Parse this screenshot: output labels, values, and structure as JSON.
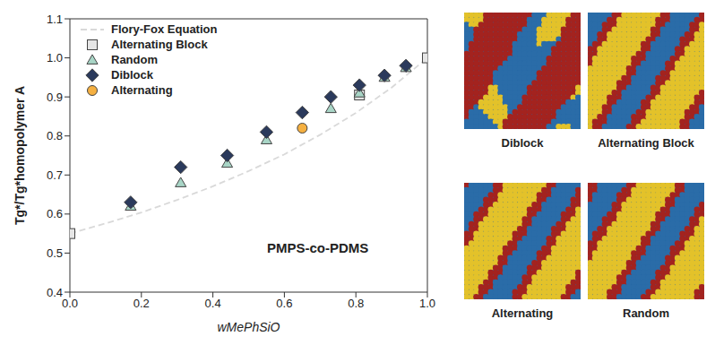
{
  "chart_data": {
    "type": "scatter",
    "annotation": "PMPS-co-PDMS",
    "x_label": "wMePhSiO",
    "y_label": "Tg*/Tg*homopolymer A",
    "xlim": [
      0,
      1
    ],
    "xticks": [
      {
        "value": 0,
        "label": "0.0"
      },
      0.2,
      0.4,
      0.6,
      0.8,
      {
        "value": 1,
        "label": "1.0"
      }
    ],
    "ylim": [
      0.4,
      1.1
    ],
    "yticks": [
      0.4,
      0.5,
      0.6,
      0.7,
      0.8,
      0.9,
      {
        "value": 1,
        "label": "1.0"
      },
      1.1
    ],
    "grid": false,
    "legend": "upper left",
    "series": [
      {
        "name": "Flory-Fox Equation",
        "type": "line",
        "line_style": "dashed",
        "color": "#d9d9d9",
        "x": [
          0,
          0.1,
          0.2,
          0.3,
          0.4,
          0.5,
          0.6,
          0.7,
          0.8,
          0.9,
          1
        ],
        "values": [
          0.55,
          0.576,
          0.604,
          0.636,
          0.671,
          0.71,
          0.753,
          0.803,
          0.859,
          0.924,
          1
        ]
      },
      {
        "name": "Alternating Block",
        "type": "scatter",
        "marker": "square",
        "color": "#e6e6e6",
        "x": [
          0,
          0.81,
          1
        ],
        "values": [
          0.55,
          0.905,
          1
        ]
      },
      {
        "name": "Random",
        "type": "scatter",
        "marker": "triangle",
        "color": "#a8d5c6",
        "x": [
          0.17,
          0.31,
          0.44,
          0.55,
          0.73,
          0.81,
          0.88,
          0.94
        ],
        "values": [
          0.62,
          0.68,
          0.73,
          0.79,
          0.87,
          0.91,
          0.95,
          0.975
        ]
      },
      {
        "name": "Diblock",
        "type": "scatter",
        "marker": "diamond",
        "color": "#2b3a5c",
        "x": [
          0.17,
          0.31,
          0.44,
          0.55,
          0.65,
          0.73,
          0.81,
          0.88,
          0.94
        ],
        "values": [
          0.63,
          0.72,
          0.75,
          0.81,
          0.86,
          0.9,
          0.93,
          0.955,
          0.98
        ]
      },
      {
        "name": "Alternating",
        "type": "scatter",
        "marker": "circle",
        "color": "#f5b041",
        "x": [
          0.65
        ],
        "values": [
          0.82
        ]
      }
    ]
  },
  "images": [
    "Diblock",
    "Alternating Block",
    "Alternating",
    "Random"
  ]
}
